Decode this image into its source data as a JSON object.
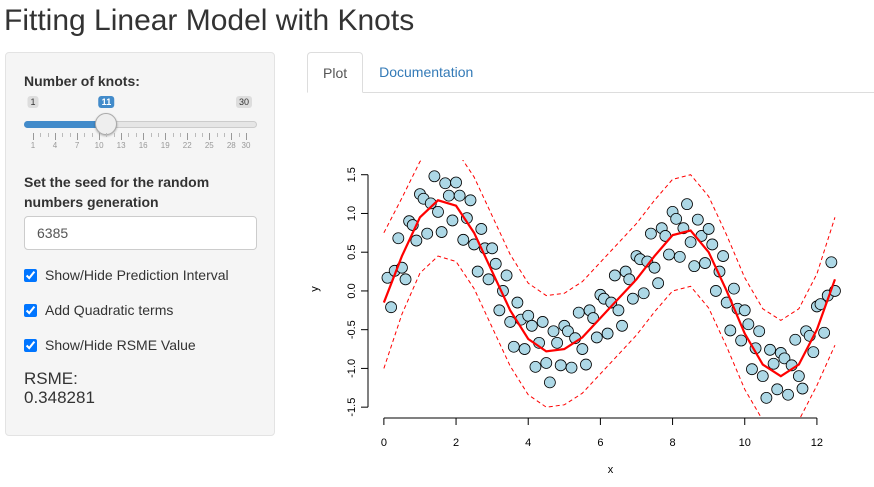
{
  "title": "Fitting Linear Model with Knots",
  "sidebar": {
    "slider": {
      "label": "Number of knots:",
      "min": 1,
      "max": 30,
      "value": 11,
      "ticks": [
        1,
        4,
        7,
        10,
        13,
        16,
        19,
        22,
        25,
        28,
        30
      ]
    },
    "seed": {
      "label": "Set the seed for the random numbers generation",
      "value": "6385"
    },
    "checkboxes": [
      {
        "label": "Show/Hide Prediction Interval",
        "checked": true
      },
      {
        "label": "Add Quadratic terms",
        "checked": true
      },
      {
        "label": "Show/Hide RSME Value",
        "checked": true
      }
    ],
    "rsme": {
      "label": "RSME:",
      "value": "0.348281"
    }
  },
  "tabs": [
    {
      "label": "Plot",
      "active": true
    },
    {
      "label": "Documentation",
      "active": false
    }
  ],
  "chart_data": {
    "type": "scatter",
    "x_label": "x",
    "y_label": "y",
    "xlim": [
      -0.44,
      13.0
    ],
    "ylim": [
      -1.64,
      1.69
    ],
    "xticks": [
      0,
      2,
      4,
      6,
      8,
      10,
      12
    ],
    "yticks": [
      -1.5,
      {
        "value": -1.0,
        "label": "-1.0"
      },
      -0.5,
      {
        "value": 0.0,
        "label": "0.0"
      },
      0.5,
      {
        "value": 1.0,
        "label": "1.0"
      },
      1.5
    ],
    "series": [
      {
        "type": "scatter",
        "color": "#add8e6",
        "x": [
          0.1,
          0.2,
          0.3,
          0.4,
          0.5,
          0.6,
          0.7,
          0.8,
          0.9,
          1.0,
          1.1,
          1.2,
          1.3,
          1.4,
          1.5,
          1.6,
          1.7,
          1.8,
          1.9,
          2.0,
          2.1,
          2.2,
          2.3,
          2.4,
          2.5,
          2.6,
          2.7,
          2.8,
          2.9,
          3.0,
          3.1,
          3.2,
          3.3,
          3.4,
          3.5,
          3.6,
          3.7,
          3.8,
          3.9,
          4.0,
          4.1,
          4.2,
          4.3,
          4.4,
          4.5,
          4.6,
          4.7,
          4.8,
          4.9,
          5.0,
          5.1,
          5.2,
          5.3,
          5.4,
          5.5,
          5.6,
          5.7,
          5.8,
          5.9,
          6.0,
          6.1,
          6.2,
          6.3,
          6.4,
          6.5,
          6.6,
          6.7,
          6.8,
          6.9,
          7.0,
          7.1,
          7.2,
          7.3,
          7.4,
          7.5,
          7.6,
          7.7,
          7.8,
          7.9,
          8.0,
          8.1,
          8.2,
          8.3,
          8.4,
          8.5,
          8.6,
          8.7,
          8.8,
          8.9,
          9.0,
          9.1,
          9.2,
          9.3,
          9.4,
          9.5,
          9.6,
          9.7,
          9.8,
          9.9,
          10.0,
          10.1,
          10.2,
          10.3,
          10.4,
          10.5,
          10.6,
          10.7,
          10.8,
          10.9,
          11.0,
          11.1,
          11.2,
          11.3,
          11.4,
          11.5,
          11.6,
          11.7,
          11.8,
          11.9,
          12.0,
          12.1,
          12.2,
          12.3,
          12.4,
          12.5
        ],
        "values": [
          0.17,
          -0.21,
          0.26,
          0.68,
          0.3,
          0.15,
          0.9,
          0.85,
          0.65,
          1.25,
          1.19,
          0.74,
          1.13,
          1.48,
          1.02,
          0.76,
          1.39,
          1.23,
          0.91,
          1.4,
          1.23,
          0.66,
          0.94,
          1.17,
          0.6,
          0.25,
          0.8,
          0.55,
          0.15,
          0.55,
          0.35,
          -0.25,
          0.0,
          0.2,
          -0.4,
          -0.72,
          -0.15,
          -0.37,
          -0.75,
          -0.32,
          -0.45,
          -0.98,
          -0.67,
          -0.4,
          -0.93,
          -1.18,
          -0.52,
          -0.67,
          -0.96,
          -0.45,
          -0.52,
          -0.99,
          -0.61,
          -0.28,
          -0.75,
          -0.95,
          -0.25,
          -0.35,
          -0.6,
          -0.05,
          -0.1,
          -0.55,
          -0.15,
          0.2,
          -0.25,
          -0.45,
          0.25,
          0.15,
          -0.1,
          0.45,
          0.41,
          -0.03,
          0.38,
          0.74,
          0.3,
          0.1,
          0.81,
          0.71,
          0.47,
          1.02,
          0.93,
          0.44,
          0.81,
          1.12,
          0.63,
          0.32,
          0.92,
          0.71,
          0.36,
          0.8,
          0.6,
          0.0,
          0.25,
          0.45,
          -0.15,
          -0.51,
          0.03,
          -0.23,
          -0.64,
          -0.25,
          -0.43,
          -1.01,
          -0.74,
          -0.52,
          -1.1,
          -1.38,
          -0.76,
          -0.94,
          -1.27,
          -0.8,
          -0.87,
          -1.34,
          -0.96,
          -0.63,
          -1.1,
          -1.26,
          -0.52,
          -0.58,
          -0.79,
          -0.2,
          -0.17,
          -0.54,
          -0.06,
          0.37,
          0.0
        ]
      },
      {
        "type": "line",
        "color": "#ff0000",
        "dash": false,
        "x": [
          0,
          0.5,
          1,
          1.5,
          2,
          2.5,
          3,
          3.5,
          4,
          4.5,
          5,
          5.5,
          6,
          6.5,
          7,
          7.5,
          8,
          8.5,
          9,
          9.5,
          10,
          10.5,
          11,
          11.5,
          12,
          12.5
        ],
        "values": [
          -0.15,
          0.45,
          0.95,
          1.17,
          1.1,
          0.75,
          0.25,
          -0.25,
          -0.62,
          -0.78,
          -0.75,
          -0.6,
          -0.35,
          -0.1,
          0.15,
          0.45,
          0.72,
          0.78,
          0.5,
          0.0,
          -0.55,
          -0.95,
          -1.1,
          -0.95,
          -0.5,
          0.15
        ]
      },
      {
        "type": "line",
        "color": "#ff0000",
        "dash": true,
        "x": [
          0,
          0.5,
          1,
          1.5,
          2,
          2.5,
          3,
          3.5,
          4,
          4.5,
          5,
          5.5,
          6,
          6.5,
          7,
          7.5,
          8,
          8.5,
          9,
          9.5,
          10,
          10.5,
          11,
          11.5,
          12,
          12.5
        ],
        "values": [
          0.75,
          1.2,
          1.67,
          1.89,
          1.82,
          1.47,
          0.97,
          0.47,
          0.1,
          -0.06,
          -0.03,
          0.12,
          0.37,
          0.62,
          0.87,
          1.17,
          1.44,
          1.5,
          1.22,
          0.72,
          0.17,
          -0.23,
          -0.38,
          -0.23,
          0.22,
          0.95
        ]
      },
      {
        "type": "line",
        "color": "#ff0000",
        "dash": true,
        "x": [
          0,
          0.5,
          1,
          1.5,
          2,
          2.5,
          3,
          3.5,
          4,
          4.5,
          5,
          5.5,
          6,
          6.5,
          7,
          7.5,
          8,
          8.5,
          9,
          9.5,
          10,
          10.5,
          11,
          11.5,
          12,
          12.5
        ],
        "values": [
          -1.0,
          -0.3,
          0.23,
          0.45,
          0.38,
          0.03,
          -0.47,
          -0.97,
          -1.34,
          -1.5,
          -1.47,
          -1.32,
          -1.07,
          -0.82,
          -0.57,
          -0.27,
          0.0,
          0.06,
          -0.22,
          -0.72,
          -1.27,
          -1.67,
          -1.82,
          -1.67,
          -1.22,
          -0.7
        ]
      }
    ]
  }
}
